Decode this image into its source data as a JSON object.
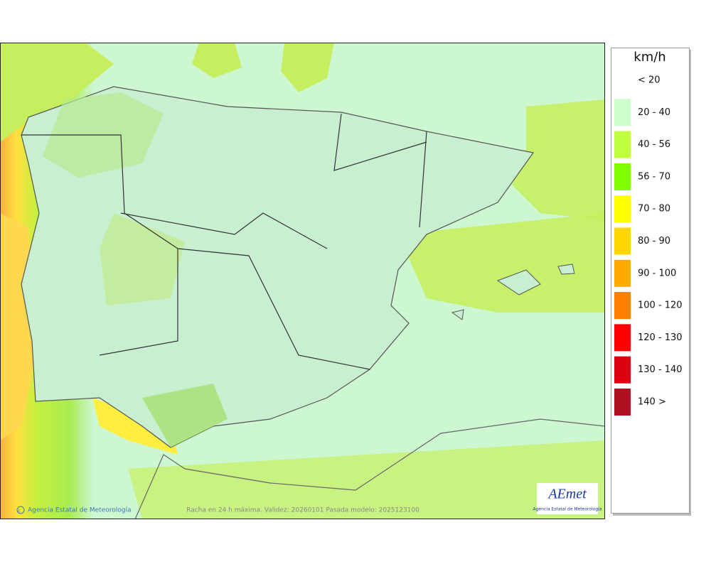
{
  "legend": {
    "unit": "km/h",
    "items": [
      {
        "label": "< 20"
      },
      {
        "label": "20 - 40",
        "color": "#ccffcc"
      },
      {
        "label": "40 - 56",
        "color": "#c0ff40"
      },
      {
        "label": "56 - 70",
        "color": "#80ff00"
      },
      {
        "label": "70 - 80",
        "color": "#ffff00"
      },
      {
        "label": "80 - 90",
        "color": "#ffd700"
      },
      {
        "label": "90 - 100",
        "color": "#ffaa00"
      },
      {
        "label": "100 - 120",
        "color": "#ff8000"
      },
      {
        "label": "120 - 130",
        "color": "#ff0000"
      },
      {
        "label": "130 - 140",
        "color": "#dd0010"
      },
      {
        "label": "140 >",
        "color": "#b01020"
      }
    ]
  },
  "footer": {
    "credit": "Agencia Estatal de Meteorología",
    "caption": "Racha en 24 h máxima. Validez: 20260101 Pasada modelo: 2025123100"
  },
  "logo": {
    "name": "AEmet",
    "subtitle": "Agencia Estatal de Meteorología"
  }
}
